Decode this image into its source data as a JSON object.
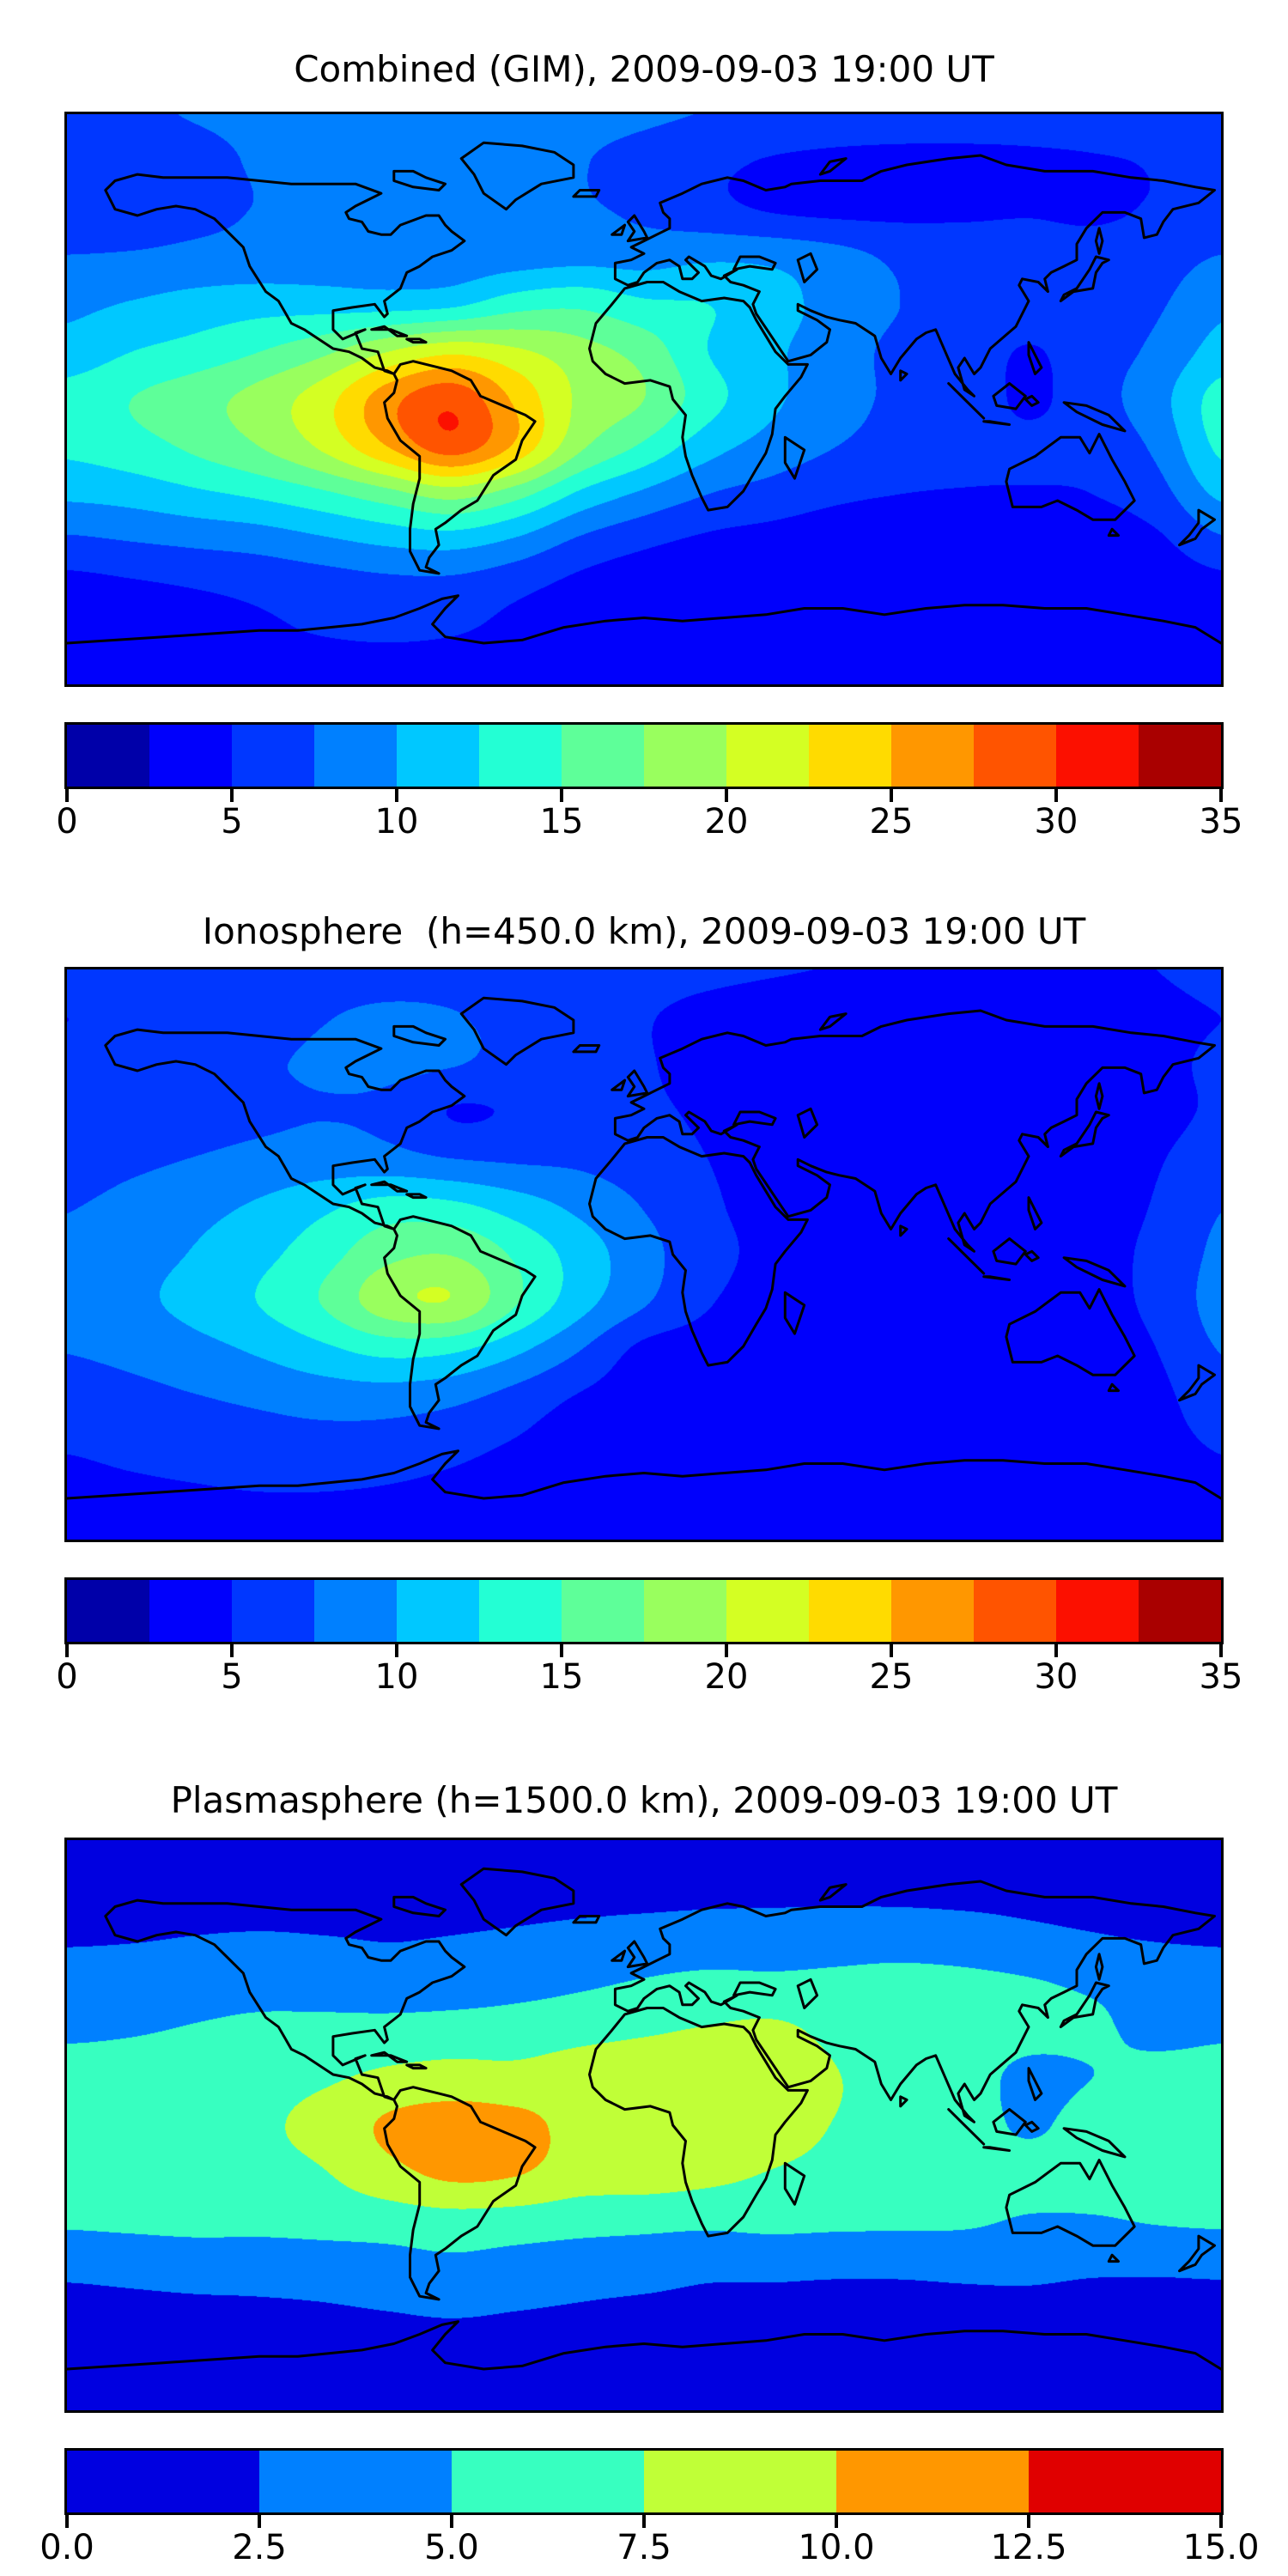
{
  "figure": {
    "description": "Global ionospheric TEC maps: combined GIM, ionospheric and plasmaspheric contributions",
    "colormap": "jet",
    "projection": "equirectangular",
    "lon_range": [
      -180,
      180
    ],
    "lat_range": [
      -90,
      90
    ]
  },
  "chart_data": [
    {
      "type": "heatmap",
      "title": "Combined (GIM), 2009-09-03 19:00 UT",
      "colormap": "jet",
      "vmin": 0,
      "vmax": 35,
      "levels": 14,
      "legend_position": "bottom-colorbar",
      "colorbar_ticks": [
        0,
        5,
        10,
        15,
        20,
        25,
        30,
        35
      ],
      "colorbar_tick_labels": [
        "0",
        "5",
        "10",
        "15",
        "20",
        "25",
        "30",
        "35"
      ],
      "grid": {
        "lon": [
          -180,
          -160,
          -140,
          -120,
          -100,
          -80,
          -60,
          -40,
          -20,
          0,
          20,
          40,
          60,
          80,
          100,
          120,
          140,
          160,
          180
        ],
        "lat": [
          90,
          75,
          60,
          45,
          30,
          15,
          0,
          -15,
          -30,
          -45,
          -60,
          -75,
          -90
        ],
        "values": [
          [
            6.8,
            7.2,
            7.6,
            7.9,
            8.1,
            8.2,
            8.2,
            8.1,
            8.0,
            7.8,
            7.4,
            7.0,
            6.6,
            6.3,
            6.1,
            6.0,
            6.1,
            6.3,
            6.8
          ],
          [
            6.2,
            6.2,
            6.9,
            7.7,
            8.1,
            8.3,
            8.2,
            8.0,
            7.6,
            6.8,
            5.6,
            4.8,
            4.4,
            4.3,
            4.4,
            4.6,
            4.8,
            5.2,
            6.2
          ],
          [
            5.4,
            5.8,
            6.8,
            7.6,
            7.9,
            8.0,
            8.0,
            8.0,
            7.8,
            7.0,
            5.8,
            4.8,
            4.4,
            4.4,
            4.6,
            4.8,
            4.6,
            5.2,
            5.4
          ],
          [
            7.6,
            7.8,
            8.2,
            8.4,
            8.4,
            8.2,
            8.4,
            8.8,
            9.2,
            9.0,
            9.6,
            9.4,
            8.4,
            7.0,
            6.4,
            6.2,
            6.0,
            6.4,
            7.6
          ],
          [
            9.4,
            10.2,
            11.0,
            11.5,
            11.5,
            11.5,
            12.0,
            14.0,
            14.5,
            13.0,
            12.5,
            11.0,
            9.0,
            7.5,
            7.0,
            6.5,
            6.5,
            7.2,
            9.4
          ],
          [
            11.0,
            12.5,
            13.5,
            15.0,
            17.0,
            20.0,
            22.0,
            20.5,
            18.5,
            16.5,
            12.5,
            10.5,
            8.5,
            7.0,
            6.5,
            4.8,
            6.5,
            8.0,
            11.0
          ],
          [
            13.5,
            15.0,
            16.5,
            18.5,
            21.5,
            26.5,
            29.3,
            24.5,
            19.5,
            17.5,
            13.5,
            10.5,
            8.5,
            7.0,
            6.5,
            4.6,
            6.5,
            9.0,
            13.5
          ],
          [
            13.0,
            14.0,
            15.5,
            17.5,
            20.5,
            25.0,
            28.8,
            24.5,
            18.0,
            14.5,
            11.0,
            9.0,
            7.5,
            6.5,
            6.0,
            5.5,
            6.0,
            8.0,
            13.0
          ],
          [
            10.5,
            11.0,
            12.0,
            13.0,
            14.5,
            16.5,
            18.5,
            16.0,
            12.0,
            9.5,
            7.5,
            6.5,
            5.5,
            5.0,
            4.8,
            4.8,
            5.0,
            6.5,
            10.5
          ],
          [
            7.0,
            7.5,
            8.0,
            8.5,
            9.5,
            10.5,
            11.0,
            9.5,
            7.0,
            5.5,
            4.5,
            4.0,
            3.5,
            3.2,
            3.2,
            3.4,
            3.6,
            4.5,
            7.0
          ],
          [
            4.0,
            4.5,
            5.0,
            5.5,
            6.0,
            6.5,
            6.5,
            5.5,
            4.2,
            3.4,
            3.0,
            2.8,
            2.7,
            2.6,
            2.6,
            2.7,
            2.8,
            3.2,
            4.0
          ],
          [
            3.4,
            3.8,
            4.2,
            4.6,
            5.0,
            5.2,
            5.0,
            4.4,
            3.8,
            3.2,
            2.9,
            2.8,
            2.7,
            2.7,
            2.7,
            2.8,
            2.9,
            3.0,
            3.4
          ],
          [
            3.6,
            3.6,
            3.6,
            3.6,
            3.6,
            3.6,
            3.6,
            3.6,
            3.6,
            3.6,
            3.6,
            3.6,
            3.6,
            3.6,
            3.6,
            3.6,
            3.6,
            3.6,
            3.6
          ]
        ]
      }
    },
    {
      "type": "heatmap",
      "title": "Ionosphere  (h=450.0 km), 2009-09-03 19:00 UT",
      "colormap": "jet",
      "vmin": 0,
      "vmax": 35,
      "levels": 14,
      "legend_position": "bottom-colorbar",
      "colorbar_ticks": [
        0,
        5,
        10,
        15,
        20,
        25,
        30,
        35
      ],
      "colorbar_tick_labels": [
        "0",
        "5",
        "10",
        "15",
        "20",
        "25",
        "30",
        "35"
      ],
      "grid": {
        "lon": [
          -180,
          -160,
          -140,
          -120,
          -100,
          -80,
          -60,
          -40,
          -20,
          0,
          20,
          40,
          60,
          80,
          100,
          120,
          140,
          160,
          180
        ],
        "lat": [
          90,
          75,
          60,
          45,
          30,
          15,
          0,
          -15,
          -30,
          -45,
          -60,
          -75,
          -90
        ],
        "values": [
          [
            5.6,
            5.8,
            6.2,
            6.5,
            6.7,
            6.8,
            6.8,
            6.6,
            6.4,
            6.0,
            5.6,
            5.2,
            4.9,
            4.7,
            4.6,
            4.6,
            4.7,
            5.0,
            5.6
          ],
          [
            5.0,
            5.2,
            5.8,
            6.6,
            7.4,
            7.8,
            7.6,
            7.0,
            6.2,
            5.2,
            4.2,
            3.6,
            3.3,
            3.2,
            3.4,
            3.6,
            3.8,
            4.4,
            5.0
          ],
          [
            5.4,
            5.8,
            6.4,
            7.2,
            7.8,
            8.0,
            7.6,
            6.8,
            6.0,
            5.2,
            4.2,
            3.6,
            3.2,
            3.2,
            3.4,
            3.6,
            3.8,
            4.4,
            5.4
          ],
          [
            5.4,
            5.8,
            6.4,
            7.0,
            7.4,
            7.0,
            4.9,
            5.2,
            5.6,
            5.4,
            4.6,
            3.8,
            3.4,
            3.2,
            3.2,
            3.4,
            3.6,
            4.2,
            5.4
          ],
          [
            6.4,
            7.0,
            7.6,
            8.2,
            8.6,
            8.4,
            7.6,
            7.2,
            7.0,
            6.2,
            5.0,
            4.0,
            3.4,
            3.2,
            3.2,
            3.4,
            3.8,
            4.8,
            6.4
          ],
          [
            7.4,
            8.2,
            9.2,
            10.4,
            12.0,
            13.6,
            13.2,
            11.4,
            9.4,
            7.4,
            5.4,
            4.2,
            3.6,
            3.4,
            3.4,
            3.6,
            4.0,
            5.2,
            7.4
          ],
          [
            8.0,
            9.0,
            10.2,
            11.8,
            14.0,
            16.8,
            17.4,
            14.6,
            11.4,
            8.4,
            5.8,
            4.4,
            3.8,
            3.5,
            3.5,
            3.6,
            4.2,
            5.6,
            8.0
          ],
          [
            8.4,
            9.4,
            10.8,
            12.6,
            15.2,
            19.0,
            19.8,
            15.2,
            11.0,
            7.8,
            5.2,
            4.0,
            3.6,
            3.4,
            3.4,
            3.8,
            4.2,
            5.6,
            8.4
          ],
          [
            7.6,
            8.2,
            9.2,
            10.4,
            12.0,
            13.4,
            13.0,
            10.6,
            7.6,
            4.4,
            3.8,
            3.2,
            3.0,
            3.0,
            3.0,
            3.4,
            3.8,
            5.0,
            7.6
          ],
          [
            6.4,
            6.8,
            7.4,
            8.0,
            8.6,
            8.8,
            8.2,
            6.6,
            4.8,
            3.6,
            2.8,
            2.6,
            2.6,
            2.8,
            3.0,
            3.2,
            3.4,
            4.4,
            6.4
          ],
          [
            5.2,
            5.6,
            6.0,
            6.4,
            6.6,
            6.4,
            5.8,
            4.8,
            3.8,
            3.2,
            2.8,
            2.8,
            3.0,
            3.4,
            3.4,
            3.6,
            3.6,
            4.2,
            5.2
          ],
          [
            4.4,
            4.6,
            4.8,
            5.0,
            5.0,
            4.8,
            4.4,
            3.8,
            3.4,
            3.0,
            2.8,
            2.8,
            3.0,
            3.2,
            3.2,
            3.2,
            3.4,
            3.8,
            4.4
          ],
          [
            3.8,
            3.8,
            3.8,
            3.8,
            3.8,
            3.8,
            3.8,
            3.8,
            3.8,
            3.8,
            3.8,
            3.8,
            3.8,
            3.8,
            3.8,
            3.8,
            3.8,
            3.8,
            3.8
          ]
        ]
      }
    },
    {
      "type": "heatmap",
      "title": "Plasmasphere (h=1500.0 km), 2009-09-03 19:00 UT",
      "colormap": "jet",
      "vmin": 0,
      "vmax": 15,
      "levels": 6,
      "legend_position": "bottom-colorbar",
      "colorbar_ticks": [
        0.0,
        2.5,
        5.0,
        7.5,
        10.0,
        12.5,
        15.0
      ],
      "colorbar_tick_labels": [
        "0.0",
        "2.5",
        "5.0",
        "7.5",
        "10.0",
        "12.5",
        "15.0"
      ],
      "grid": {
        "lon": [
          -180,
          -160,
          -140,
          -120,
          -100,
          -80,
          -60,
          -40,
          -20,
          0,
          20,
          40,
          60,
          80,
          100,
          120,
          140,
          160,
          180
        ],
        "lat": [
          90,
          75,
          60,
          45,
          30,
          15,
          0,
          -15,
          -30,
          -45,
          -60,
          -75,
          -90
        ],
        "values": [
          [
            1.6,
            1.6,
            1.6,
            1.6,
            1.6,
            1.6,
            1.6,
            1.6,
            1.6,
            1.6,
            1.6,
            1.6,
            1.6,
            1.6,
            1.6,
            1.6,
            1.6,
            1.6,
            1.6
          ],
          [
            1.6,
            1.6,
            1.7,
            1.7,
            1.8,
            1.8,
            1.8,
            1.8,
            1.8,
            1.8,
            1.9,
            1.9,
            1.9,
            1.9,
            1.8,
            1.8,
            1.7,
            1.6,
            1.6
          ],
          [
            2.2,
            2.3,
            2.5,
            2.6,
            2.5,
            2.4,
            2.5,
            2.7,
            3.0,
            3.3,
            3.5,
            3.6,
            3.7,
            3.7,
            3.5,
            3.0,
            2.6,
            2.3,
            2.2
          ],
          [
            3.6,
            3.7,
            3.9,
            4.0,
            3.7,
            3.3,
            3.5,
            4.0,
            4.6,
            5.2,
            5.6,
            5.5,
            5.6,
            5.8,
            5.6,
            5.2,
            4.6,
            4.0,
            3.6
          ],
          [
            4.6,
            4.8,
            5.2,
            5.6,
            5.8,
            6.0,
            6.2,
            6.4,
            6.8,
            7.2,
            7.7,
            8.0,
            6.9,
            6.4,
            6.2,
            5.8,
            5.4,
            4.4,
            4.6
          ],
          [
            6.0,
            6.2,
            6.5,
            6.8,
            7.2,
            8.0,
            8.4,
            8.2,
            8.6,
            9.2,
            9.4,
            9.0,
            7.6,
            6.6,
            6.2,
            4.3,
            5.0,
            5.8,
            6.0
          ],
          [
            6.3,
            6.5,
            6.8,
            7.2,
            8.2,
            10.4,
            11.3,
            10.8,
            9.3,
            9.9,
            9.0,
            8.6,
            7.4,
            6.8,
            6.4,
            4.6,
            6.2,
            6.3,
            6.3
          ],
          [
            6.2,
            6.4,
            6.6,
            6.9,
            7.4,
            9.2,
            10.6,
            10.2,
            8.8,
            8.8,
            8.2,
            7.4,
            6.8,
            6.4,
            6.2,
            6.0,
            6.2,
            6.2,
            6.2
          ],
          [
            5.4,
            5.6,
            5.8,
            5.8,
            6.0,
            6.2,
            6.6,
            6.4,
            6.0,
            5.8,
            5.6,
            5.8,
            5.6,
            5.5,
            5.4,
            4.8,
            4.8,
            5.2,
            5.4
          ],
          [
            3.0,
            3.2,
            3.4,
            3.4,
            3.6,
            4.0,
            4.4,
            4.0,
            3.6,
            3.4,
            3.0,
            3.0,
            2.9,
            2.9,
            3.0,
            3.0,
            2.8,
            2.8,
            2.9
          ],
          [
            1.8,
            1.9,
            2.0,
            2.1,
            2.2,
            2.4,
            2.6,
            2.4,
            2.2,
            2.0,
            1.9,
            1.9,
            1.8,
            1.8,
            1.9,
            1.9,
            1.8,
            1.8,
            1.8
          ],
          [
            1.5,
            1.5,
            1.5,
            1.5,
            1.5,
            1.5,
            1.5,
            1.5,
            1.5,
            1.5,
            1.5,
            1.5,
            1.5,
            1.5,
            1.5,
            1.5,
            1.5,
            1.5,
            1.5
          ],
          [
            1.5,
            1.5,
            1.5,
            1.5,
            1.5,
            1.5,
            1.5,
            1.5,
            1.5,
            1.5,
            1.5,
            1.5,
            1.5,
            1.5,
            1.5,
            1.5,
            1.5,
            1.5,
            1.5
          ]
        ]
      }
    }
  ]
}
